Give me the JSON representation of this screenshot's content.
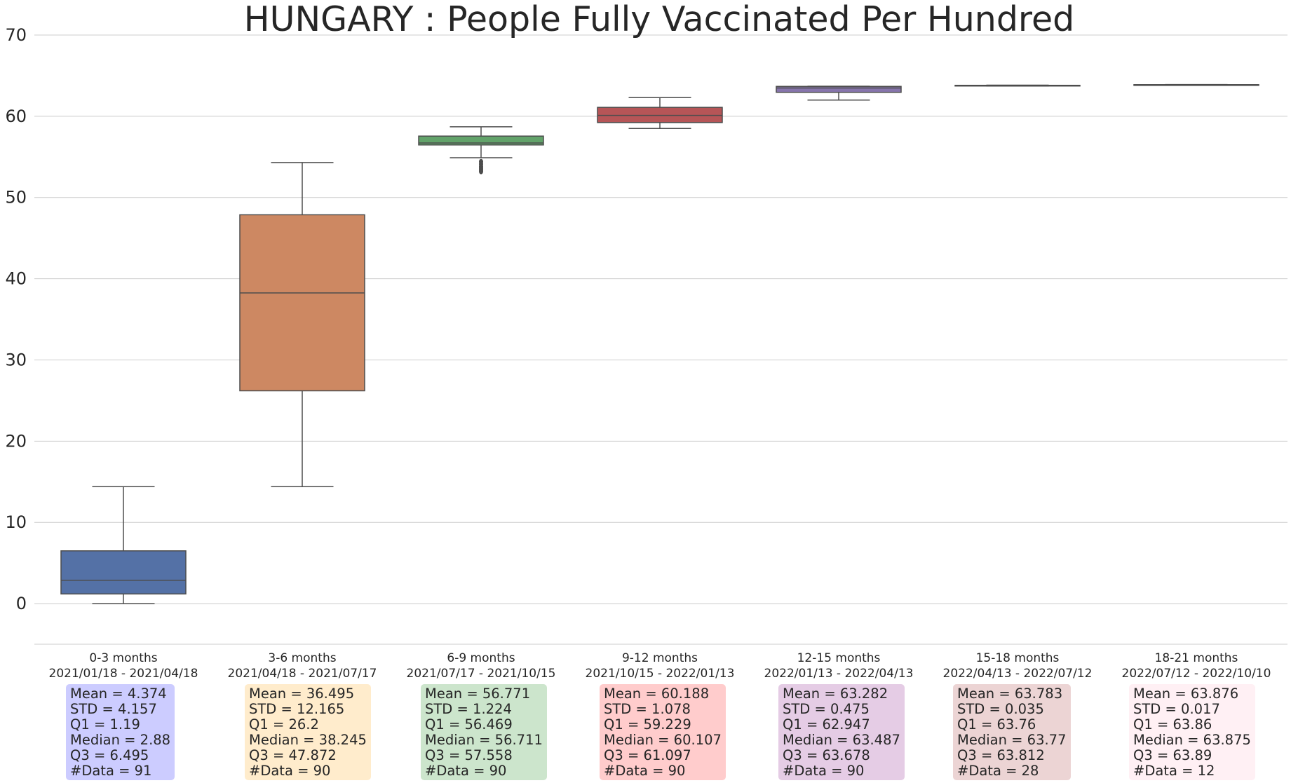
{
  "chart_data": {
    "type": "box",
    "title": "HUNGARY : People Fully Vaccinated Per Hundred",
    "xlabel": "",
    "ylabel": "",
    "ylim": [
      -5,
      70
    ],
    "yticks": [
      0,
      10,
      20,
      30,
      40,
      50,
      60,
      70
    ],
    "grid": true,
    "categories": [
      {
        "label": "0-3 months",
        "range": "2021/01/18 - 2021/04/18",
        "color": "#5471a6",
        "stats_bg": "#ccccff",
        "whisker_low": 0,
        "q1": 1.19,
        "median": 2.88,
        "q3": 6.495,
        "whisker_high": 14.4,
        "outliers": [],
        "stats": [
          "Mean = 4.374",
          "STD = 4.157",
          "Q1 = 1.19",
          "Median = 2.88",
          "Q3 = 6.495",
          "#Data = 91"
        ]
      },
      {
        "label": "3-6 months",
        "range": "2021/04/18 - 2021/07/17",
        "color": "#cd8862",
        "stats_bg": "#ffeccc",
        "whisker_low": 14.4,
        "q1": 26.2,
        "median": 38.245,
        "q3": 47.872,
        "whisker_high": 54.3,
        "outliers": [],
        "stats": [
          "Mean = 36.495",
          "STD = 12.165",
          "Q1 = 26.2",
          "Median = 38.245",
          "Q3 = 47.872",
          "#Data = 90"
        ]
      },
      {
        "label": "6-9 months",
        "range": "2021/07/17 - 2021/10/15",
        "color": "#62a36a",
        "stats_bg": "#cce5cc",
        "whisker_low": 54.9,
        "q1": 56.469,
        "median": 56.711,
        "q3": 57.558,
        "whisker_high": 58.7,
        "outliers": [
          54.4,
          54.1,
          53.8,
          53.6,
          53.4,
          53.2
        ],
        "stats": [
          "Mean = 56.771",
          "STD = 1.224",
          "Q1 = 56.469",
          "Median = 56.711",
          "Q3 = 57.558",
          "#Data = 90"
        ]
      },
      {
        "label": "9-12 months",
        "range": "2021/10/15 - 2022/01/13",
        "color": "#b65557",
        "stats_bg": "#ffcccc",
        "whisker_low": 58.5,
        "q1": 59.229,
        "median": 60.107,
        "q3": 61.097,
        "whisker_high": 62.3,
        "outliers": [],
        "stats": [
          "Mean = 60.188",
          "STD = 1.078",
          "Q1 = 59.229",
          "Median = 60.107",
          "Q3 = 61.097",
          "#Data = 90"
        ]
      },
      {
        "label": "12-15 months",
        "range": "2022/01/13 - 2022/04/13",
        "color": "#8775ac",
        "stats_bg": "#e5cce5",
        "whisker_low": 62.0,
        "q1": 62.947,
        "median": 63.487,
        "q3": 63.678,
        "whisker_high": 63.7,
        "outliers": [],
        "stats": [
          "Mean = 63.282",
          "STD = 0.475",
          "Q1 = 62.947",
          "Median = 63.487",
          "Q3 = 63.678",
          "#Data = 90"
        ]
      },
      {
        "label": "15-18 months",
        "range": "2022/04/13 - 2022/07/12",
        "color": "#8e6f63",
        "stats_bg": "#ecd4d4",
        "whisker_low": 63.72,
        "q1": 63.76,
        "median": 63.77,
        "q3": 63.812,
        "whisker_high": 63.83,
        "outliers": [],
        "stats": [
          "Mean = 63.783",
          "STD = 0.035",
          "Q1 = 63.76",
          "Median = 63.77",
          "Q3 = 63.812",
          "#Data = 28"
        ]
      },
      {
        "label": "18-21 months",
        "range": "2022/07/12 - 2022/10/10",
        "color": "#d18cc3",
        "stats_bg": "#fff0f4",
        "whisker_low": 63.85,
        "q1": 63.86,
        "median": 63.875,
        "q3": 63.89,
        "whisker_high": 63.9,
        "outliers": [],
        "stats": [
          "Mean = 63.876",
          "STD = 0.017",
          "Q1 = 63.86",
          "Median = 63.875",
          "Q3 = 63.89",
          "#Data = 12"
        ]
      }
    ]
  }
}
